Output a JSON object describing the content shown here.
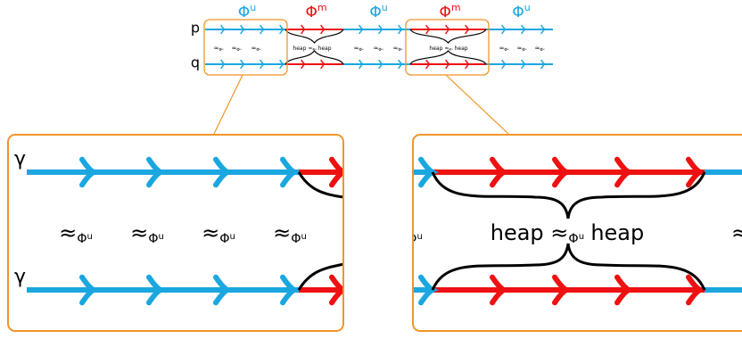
{
  "symbols": {
    "phi": "Φ",
    "approx": "≈",
    "heap": "heap",
    "gamma": "γ"
  },
  "top_labels": [
    "u",
    "m",
    "u",
    "m",
    "u"
  ],
  "rows": [
    "p",
    "q"
  ],
  "relation_sup": "u"
}
